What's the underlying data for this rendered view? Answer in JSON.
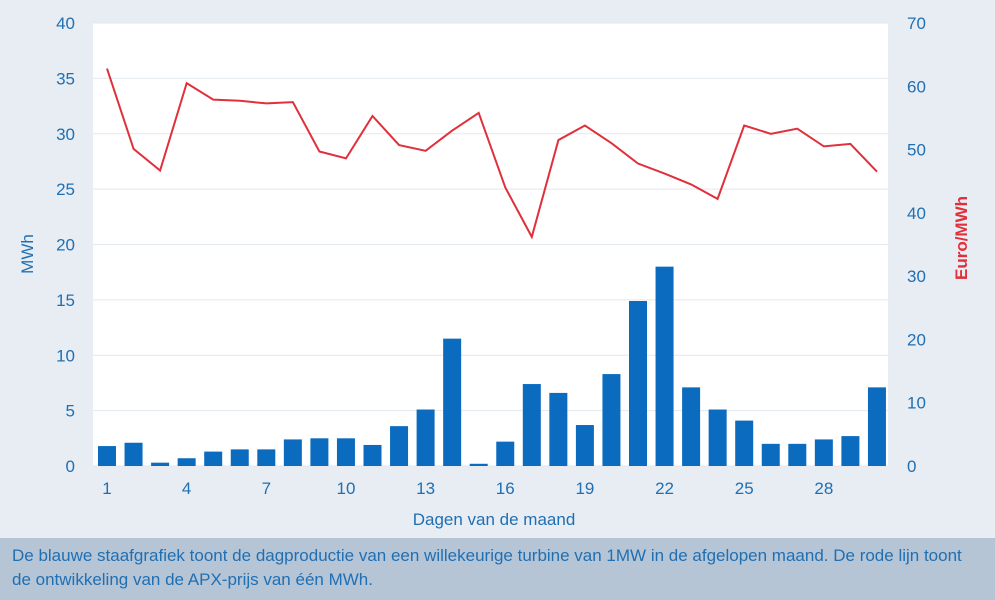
{
  "chart_data": {
    "type": "bar+line",
    "x": [
      1,
      2,
      3,
      4,
      5,
      6,
      7,
      8,
      9,
      10,
      11,
      12,
      13,
      14,
      15,
      16,
      17,
      18,
      19,
      20,
      21,
      22,
      23,
      24,
      25,
      26,
      27,
      28,
      29,
      30
    ],
    "x_ticks": [
      "1",
      "4",
      "7",
      "10",
      "13",
      "16",
      "19",
      "22",
      "25",
      "28"
    ],
    "xlabel": "Dagen van de maand",
    "ylabel_left": "MWh",
    "ylabel_right": "Euro/MWh",
    "ylim_left": [
      0,
      40
    ],
    "ylim_right": [
      0,
      70
    ],
    "y_ticks_left": [
      "0",
      "5",
      "10",
      "15",
      "20",
      "25",
      "30",
      "35",
      "40"
    ],
    "y_ticks_right": [
      "0",
      "10",
      "20",
      "30",
      "40",
      "50",
      "60",
      "70"
    ],
    "grid": true,
    "series": [
      {
        "axis": "left",
        "kind": "bar",
        "color": "#0b6cbf",
        "values": [
          1.8,
          2.1,
          0.3,
          0.7,
          1.3,
          1.5,
          1.5,
          2.4,
          2.5,
          2.5,
          1.9,
          3.6,
          5.1,
          11.5,
          0.2,
          2.2,
          7.4,
          6.6,
          3.7,
          8.3,
          14.9,
          18.0,
          7.1,
          5.1,
          4.1,
          2.0,
          2.0,
          2.4,
          2.7,
          7.1
        ]
      },
      {
        "axis": "right",
        "kind": "line",
        "color": "#e0303b",
        "values": [
          62.8,
          50.1,
          46.7,
          60.5,
          57.9,
          57.7,
          57.3,
          57.5,
          49.7,
          48.6,
          55.3,
          50.7,
          49.8,
          53.0,
          55.8,
          44.0,
          36.2,
          51.5,
          53.8,
          51.0,
          47.8,
          46.2,
          44.5,
          42.2,
          53.8,
          52.5,
          53.3,
          50.5,
          50.9,
          46.5
        ]
      }
    ]
  },
  "caption": "De blauwe staafgrafiek toont de dagproductie van een willekeurige turbine van 1MW in de afgelopen maand. De rode lijn toont de ontwikkeling van de APX-prijs van één MWh."
}
